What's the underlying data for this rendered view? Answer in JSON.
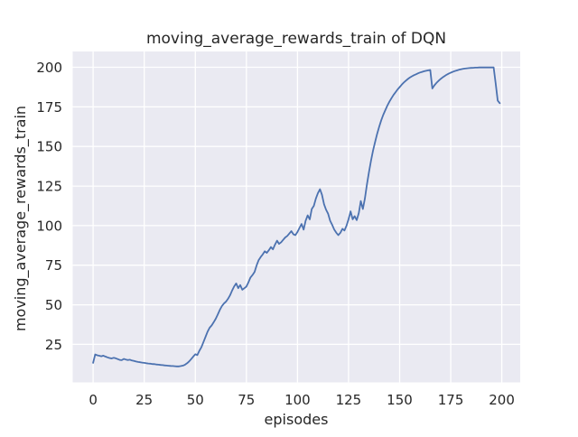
{
  "figure": {
    "background": "#ffffff"
  },
  "chart_data": {
    "type": "line",
    "title": "moving_average_rewards_train of DQN",
    "xlabel": "episodes",
    "ylabel": "moving_average_rewards_train",
    "xlim": [
      -10,
      209
    ],
    "ylim": [
      1,
      210
    ],
    "x_ticks": [
      0,
      25,
      50,
      75,
      100,
      125,
      150,
      175,
      200
    ],
    "y_ticks": [
      25,
      50,
      75,
      100,
      125,
      150,
      175,
      200
    ],
    "grid": true,
    "legend_position": "none",
    "plot_background": "#eaeaf2",
    "grid_color": "#ffffff",
    "text_color": "#262626",
    "series": [
      {
        "name": "DQN moving average rewards (train)",
        "color": "#4c72b0",
        "line_width": 1.8,
        "x_start": 0,
        "x_step": 1,
        "values": [
          13.3,
          18.6,
          18.1,
          17.8,
          17.5,
          17.9,
          17.3,
          16.8,
          16.4,
          16.1,
          16.5,
          16.2,
          15.7,
          15.2,
          15.0,
          15.8,
          15.4,
          15.1,
          15.3,
          14.8,
          14.5,
          14.2,
          13.9,
          13.7,
          13.5,
          13.3,
          13.1,
          12.9,
          12.8,
          12.6,
          12.5,
          12.3,
          12.2,
          12.0,
          11.9,
          11.7,
          11.6,
          11.5,
          11.4,
          11.3,
          11.2,
          11.1,
          11.1,
          11.3,
          11.6,
          12.2,
          13.1,
          14.3,
          15.7,
          17.3,
          18.8,
          18.2,
          21.0,
          23.2,
          26.5,
          29.8,
          33.0,
          35.5,
          37.0,
          39.0,
          41.2,
          43.8,
          46.8,
          49.2,
          50.8,
          52.0,
          53.8,
          56.0,
          59.0,
          61.5,
          63.5,
          60.5,
          62.5,
          59.5,
          60.5,
          61.5,
          64.2,
          67.2,
          68.8,
          70.8,
          74.8,
          78.2,
          80.2,
          81.8,
          83.8,
          82.8,
          84.5,
          86.5,
          85.0,
          88.0,
          90.5,
          88.5,
          89.5,
          91.0,
          92.5,
          93.5,
          95.0,
          96.5,
          94.5,
          94.0,
          96.0,
          98.5,
          101.0,
          97.5,
          103.0,
          106.5,
          104.0,
          110.5,
          112.5,
          117.0,
          120.5,
          123.0,
          119.5,
          113.5,
          110.0,
          107.5,
          103.0,
          100.5,
          97.5,
          95.5,
          94.0,
          95.5,
          98.0,
          96.9,
          100.0,
          104.0,
          109.0,
          104.0,
          106.0,
          103.5,
          108.0,
          115.5,
          110.5,
          117.0,
          126.0,
          134.0,
          141.0,
          147.5,
          153.0,
          158.0,
          162.5,
          166.5,
          170.0,
          173.0,
          175.8,
          178.3,
          180.5,
          182.5,
          184.3,
          186.0,
          187.5,
          189.0,
          190.3,
          191.5,
          192.6,
          193.5,
          194.3,
          195.0,
          195.6,
          196.2,
          196.7,
          197.1,
          197.5,
          197.8,
          198.1,
          198.3,
          186.6,
          188.6,
          190.1,
          191.4,
          192.6,
          193.6,
          194.5,
          195.3,
          196.0,
          196.6,
          197.1,
          197.6,
          198.0,
          198.4,
          198.7,
          199.0,
          199.2,
          199.4,
          199.5,
          199.6,
          199.7,
          199.8,
          199.8,
          199.9,
          199.9,
          199.9,
          199.9,
          199.9,
          199.9,
          199.9,
          199.9,
          190.0,
          179.0,
          177.3
        ]
      }
    ]
  }
}
